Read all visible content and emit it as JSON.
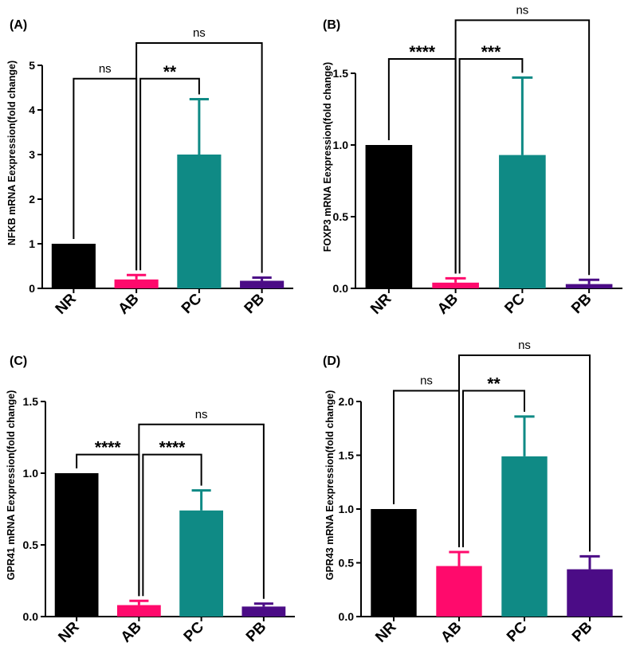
{
  "chart_data": [
    {
      "type": "bar",
      "panel_label": "(A)",
      "ylabel": "NFKB mRNA  Eexpression(fold change)",
      "categories": [
        "NR",
        "AB",
        "PC",
        "PB"
      ],
      "values": [
        1.0,
        0.2,
        3.0,
        0.17
      ],
      "errors": [
        0,
        0.1,
        1.24,
        0.07
      ],
      "colors": [
        "#000000",
        "#ff0a6c",
        "#0f8a85",
        "#4b0c86"
      ],
      "ylim": [
        0,
        5
      ],
      "yticks": [
        0,
        1,
        2,
        3,
        4,
        5
      ],
      "ytick_labels": [
        "0",
        "1",
        "2",
        "3",
        "4",
        "5"
      ],
      "annotations": [
        {
          "from": "NR",
          "to": "AB",
          "label": "ns",
          "y": 4.7
        },
        {
          "from": "AB",
          "to": "PC",
          "label": "**",
          "y": 4.7
        },
        {
          "from": "AB",
          "to": "PB",
          "label": "ns",
          "y": 5.5
        }
      ]
    },
    {
      "type": "bar",
      "panel_label": "(B)",
      "ylabel": "FOXP3 mRNA  Eexpression(fold change)",
      "categories": [
        "NR",
        "AB",
        "PC",
        "PB"
      ],
      "values": [
        1.0,
        0.04,
        0.93,
        0.03
      ],
      "errors": [
        0,
        0.03,
        0.54,
        0.03
      ],
      "colors": [
        "#000000",
        "#ff0a6c",
        "#0f8a85",
        "#4b0c86"
      ],
      "ylim": [
        0,
        1.5
      ],
      "yticks": [
        0,
        0.5,
        1.0,
        1.5
      ],
      "ytick_labels": [
        "0.0",
        "0.5",
        "1.0",
        "1.5"
      ],
      "annotations": [
        {
          "from": "NR",
          "to": "AB",
          "label": "****",
          "y": 1.6
        },
        {
          "from": "AB",
          "to": "PC",
          "label": "***",
          "y": 1.6
        },
        {
          "from": "AB",
          "to": "PB",
          "label": "ns",
          "y": 1.87
        }
      ]
    },
    {
      "type": "bar",
      "panel_label": "(C)",
      "ylabel": "GPR41 mRNA  Eexpression(fold change)",
      "categories": [
        "NR",
        "AB",
        "PC",
        "PB"
      ],
      "values": [
        1.0,
        0.08,
        0.74,
        0.07
      ],
      "errors": [
        0,
        0.03,
        0.14,
        0.02
      ],
      "colors": [
        "#000000",
        "#ff0a6c",
        "#0f8a85",
        "#4b0c86"
      ],
      "ylim": [
        0,
        1.5
      ],
      "yticks": [
        0,
        0.5,
        1.0,
        1.5
      ],
      "ytick_labels": [
        "0.0",
        "0.5",
        "1.0",
        "1.5"
      ],
      "annotations": [
        {
          "from": "NR",
          "to": "AB",
          "label": "****",
          "y": 1.13
        },
        {
          "from": "AB",
          "to": "PC",
          "label": "****",
          "y": 1.13
        },
        {
          "from": "AB",
          "to": "PB",
          "label": "ns",
          "y": 1.34
        }
      ]
    },
    {
      "type": "bar",
      "panel_label": "(D)",
      "ylabel": "GPR43 mRNA  Eexpression(fold change)",
      "categories": [
        "NR",
        "AB",
        "PC",
        "PB"
      ],
      "values": [
        1.0,
        0.47,
        1.49,
        0.44
      ],
      "errors": [
        0,
        0.13,
        0.37,
        0.12
      ],
      "colors": [
        "#000000",
        "#ff0a6c",
        "#0f8a85",
        "#4b0c86"
      ],
      "ylim": [
        0,
        2.0
      ],
      "yticks": [
        0,
        0.5,
        1.0,
        1.5,
        2.0
      ],
      "ytick_labels": [
        "0.0",
        "0.5",
        "1.0",
        "1.5",
        "2.0"
      ],
      "annotations": [
        {
          "from": "NR",
          "to": "AB",
          "label": "ns",
          "y": 2.1
        },
        {
          "from": "AB",
          "to": "PC",
          "label": "**",
          "y": 2.1
        },
        {
          "from": "AB",
          "to": "PB",
          "label": "ns",
          "y": 2.43
        }
      ]
    }
  ]
}
